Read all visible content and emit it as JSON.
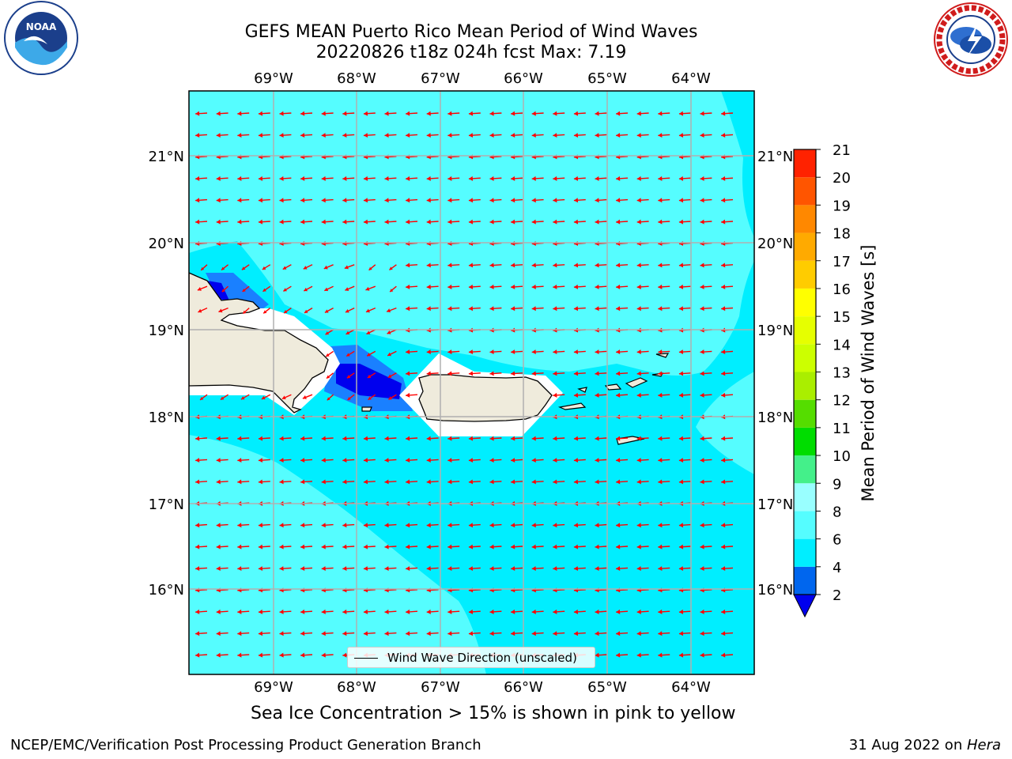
{
  "title": {
    "line1": "GEFS MEAN Puerto Rico Mean Period of Wind Waves",
    "line2": "20220826 t18z 024h fcst   Max: 7.19"
  },
  "logos": {
    "left": {
      "icon": "noaa-logo",
      "text": "NOAA"
    },
    "right": {
      "icon": "nws-logo"
    }
  },
  "map": {
    "lon_ticks": [
      "69°W",
      "68°W",
      "67°W",
      "66°W",
      "65°W",
      "64°W"
    ],
    "lat_ticks": [
      "21°N",
      "20°N",
      "19°N",
      "18°N",
      "17°N",
      "16°N"
    ],
    "legend_label": "Wind Wave Direction (unscaled)",
    "colors": {
      "ocean_main": "#00eeff",
      "ocean_light": "#55fdff",
      "blue": "#1a80ff",
      "dark_blue": "#0000ee",
      "land": "#efebdc",
      "arrow": "#ff0000"
    }
  },
  "colorbar": {
    "label": "Mean Period of Wind Waves [s]",
    "ticks": [
      "2",
      "4",
      "6",
      "8",
      "9",
      "10",
      "11",
      "12",
      "13",
      "14",
      "15",
      "16",
      "17",
      "18",
      "19",
      "20",
      "21"
    ],
    "colors": [
      "#0066ee",
      "#00eeff",
      "#55fdff",
      "#99ffff",
      "#44f08a",
      "#00dd00",
      "#55dd00",
      "#aaee00",
      "#ccff00",
      "#e6ff00",
      "#ffff00",
      "#ffcc00",
      "#ffaa00",
      "#ff8800",
      "#ff5500",
      "#ff2200",
      "#ff0000"
    ],
    "under_color": "#0000ee"
  },
  "captions": {
    "ice": "Sea Ice Concentration > 15% is shown in pink to yellow",
    "footer_left": "NCEP/EMC/Verification Post Processing Product Generation Branch",
    "footer_date": "31 Aug 2022 on ",
    "footer_machine": "Hera"
  }
}
